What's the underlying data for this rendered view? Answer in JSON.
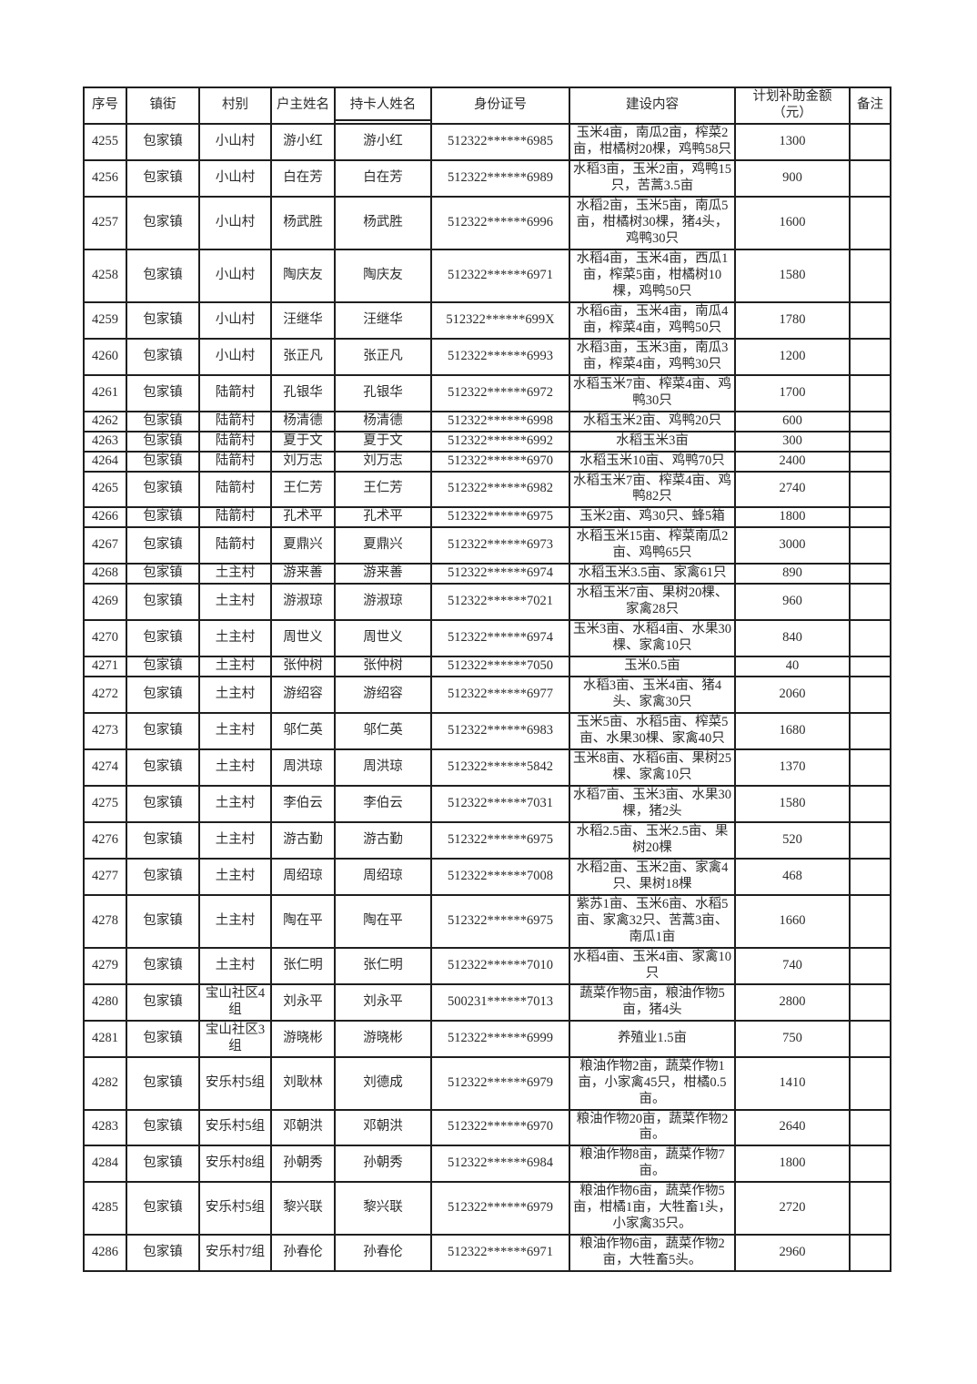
{
  "table": {
    "columns": [
      {
        "key": "seq",
        "label": "序号"
      },
      {
        "key": "town",
        "label": "镇街"
      },
      {
        "key": "village",
        "label": "村别"
      },
      {
        "key": "householder",
        "label": "户主姓名"
      },
      {
        "key": "cardholder",
        "label": "持卡人姓名"
      },
      {
        "key": "id",
        "label": "身份证号"
      },
      {
        "key": "content",
        "label": "建设内容"
      },
      {
        "key": "amount",
        "label": "计划补助金额\n（元）"
      },
      {
        "key": "remark",
        "label": "备注"
      }
    ],
    "rows": [
      [
        "4255",
        "包家镇",
        "小山村",
        "游小红",
        "游小红",
        "512322******6985",
        "玉米4亩，南瓜2亩，榨菜2亩，柑橘树20棵，鸡鸭58只",
        "1300",
        ""
      ],
      [
        "4256",
        "包家镇",
        "小山村",
        "白在芳",
        "白在芳",
        "512322******6989",
        "水稻3亩，玉米2亩，鸡鸭15只，苦蒿3.5亩",
        "900",
        ""
      ],
      [
        "4257",
        "包家镇",
        "小山村",
        "杨武胜",
        "杨武胜",
        "512322******6996",
        "水稻2亩，玉米5亩，南瓜5亩，柑橘树30棵，猪4头，鸡鸭30只",
        "1600",
        ""
      ],
      [
        "4258",
        "包家镇",
        "小山村",
        "陶庆友",
        "陶庆友",
        "512322******6971",
        "水稻4亩，玉米4亩，西瓜1亩，榨菜5亩，柑橘树10棵，鸡鸭50只",
        "1580",
        ""
      ],
      [
        "4259",
        "包家镇",
        "小山村",
        "汪继华",
        "汪继华",
        "512322******699X",
        "水稻6亩，玉米4亩，南瓜4亩，榨菜4亩，鸡鸭50只",
        "1780",
        ""
      ],
      [
        "4260",
        "包家镇",
        "小山村",
        "张正凡",
        "张正凡",
        "512322******6993",
        "水稻3亩，玉米3亩，南瓜3亩，榨菜4亩，鸡鸭30只",
        "1200",
        ""
      ],
      [
        "4261",
        "包家镇",
        "陆箭村",
        "孔银华",
        "孔银华",
        "512322******6972",
        "水稻玉米7亩、榨菜4亩、鸡鸭30只",
        "1700",
        ""
      ],
      [
        "4262",
        "包家镇",
        "陆箭村",
        "杨清德",
        "杨清德",
        "512322******6998",
        "水稻玉米2亩、鸡鸭20只",
        "600",
        ""
      ],
      [
        "4263",
        "包家镇",
        "陆箭村",
        "夏于文",
        "夏于文",
        "512322******6992",
        "水稻玉米3亩",
        "300",
        ""
      ],
      [
        "4264",
        "包家镇",
        "陆箭村",
        "刘万志",
        "刘万志",
        "512322******6970",
        "水稻玉米10亩、鸡鸭70只",
        "2400",
        ""
      ],
      [
        "4265",
        "包家镇",
        "陆箭村",
        "王仁芳",
        "王仁芳",
        "512322******6982",
        "水稻玉米7亩、榨菜4亩、鸡鸭82只",
        "2740",
        ""
      ],
      [
        "4266",
        "包家镇",
        "陆箭村",
        "孔术平",
        "孔术平",
        "512322******6975",
        "玉米2亩、鸡30只、蜂5箱",
        "1800",
        ""
      ],
      [
        "4267",
        "包家镇",
        "陆箭村",
        "夏鼎兴",
        "夏鼎兴",
        "512322******6973",
        "水稻玉米15亩、榨菜南瓜2亩、鸡鸭65只",
        "3000",
        ""
      ],
      [
        "4268",
        "包家镇",
        "土主村",
        "游来善",
        "游来善",
        "512322******6974",
        "水稻玉米3.5亩、家禽61只",
        "890",
        ""
      ],
      [
        "4269",
        "包家镇",
        "土主村",
        "游淑琼",
        "游淑琼",
        "512322******7021",
        "水稻玉米7亩、果树20棵、家禽28只",
        "960",
        ""
      ],
      [
        "4270",
        "包家镇",
        "土主村",
        "周世义",
        "周世义",
        "512322******6974",
        "玉米3亩、水稻4亩、水果30棵、家禽10只",
        "840",
        ""
      ],
      [
        "4271",
        "包家镇",
        "土主村",
        "张仲树",
        "张仲树",
        "512322******7050",
        "玉米0.5亩",
        "40",
        ""
      ],
      [
        "4272",
        "包家镇",
        "土主村",
        "游绍容",
        "游绍容",
        "512322******6977",
        "水稻3亩、玉米4亩、猪4头、家禽30只",
        "2060",
        ""
      ],
      [
        "4273",
        "包家镇",
        "土主村",
        "邬仁英",
        "邬仁英",
        "512322******6983",
        "玉米5亩、水稻5亩、榨菜5亩、水果30棵、家禽40只",
        "1680",
        ""
      ],
      [
        "4274",
        "包家镇",
        "土主村",
        "周洪琼",
        "周洪琼",
        "512322******5842",
        "玉米8亩、水稻6亩、果树25棵、家禽10只",
        "1370",
        ""
      ],
      [
        "4275",
        "包家镇",
        "土主村",
        "李伯云",
        "李伯云",
        "512322******7031",
        "水稻7亩、玉米3亩、水果30棵，猪2头",
        "1580",
        ""
      ],
      [
        "4276",
        "包家镇",
        "土主村",
        "游古勤",
        "游古勤",
        "512322******6975",
        "水稻2.5亩、玉米2.5亩、果树20棵",
        "520",
        ""
      ],
      [
        "4277",
        "包家镇",
        "土主村",
        "周绍琼",
        "周绍琼",
        "512322******7008",
        "水稻2亩、玉米2亩、家禽4只、果树18棵",
        "468",
        ""
      ],
      [
        "4278",
        "包家镇",
        "土主村",
        "陶在平",
        "陶在平",
        "512322******6975",
        "紫苏1亩、玉米6亩、水稻5亩、家禽32只、苦蒿3亩、南瓜1亩",
        "1660",
        ""
      ],
      [
        "4279",
        "包家镇",
        "土主村",
        "张仁明",
        "张仁明",
        "512322******7010",
        "水稻4亩、玉米4亩、家禽10只",
        "740",
        ""
      ],
      [
        "4280",
        "包家镇",
        "宝山社区4组",
        "刘永平",
        "刘永平",
        "500231******7013",
        "蔬菜作物5亩，粮油作物5亩，猪4头",
        "2800",
        ""
      ],
      [
        "4281",
        "包家镇",
        "宝山社区3组",
        "游晓彬",
        "游晓彬",
        "512322******6999",
        "养殖业1.5亩",
        "750",
        ""
      ],
      [
        "4282",
        "包家镇",
        "安乐村5组",
        "刘耿林",
        "刘德成",
        "512322******6979",
        "粮油作物2亩，蔬菜作物1亩，小家禽45只，柑橘0.5亩。",
        "1410",
        ""
      ],
      [
        "4283",
        "包家镇",
        "安乐村5组",
        "邓朝洪",
        "邓朝洪",
        "512322******6970",
        "粮油作物20亩，蔬菜作物2亩。",
        "2640",
        ""
      ],
      [
        "4284",
        "包家镇",
        "安乐村8组",
        "孙朝秀",
        "孙朝秀",
        "512322******6984",
        "粮油作物8亩，蔬菜作物7亩。",
        "1800",
        ""
      ],
      [
        "4285",
        "包家镇",
        "安乐村5组",
        "黎兴联",
        "黎兴联",
        "512322******6979",
        "粮油作物6亩，蔬菜作物5亩，柑橘1亩，大牲畜1头，小家禽35只。",
        "2720",
        ""
      ],
      [
        "4286",
        "包家镇",
        "安乐村7组",
        "孙春伦",
        "孙春伦",
        "512322******6971",
        "粮油作物6亩，蔬菜作物2亩，大牲畜5头。",
        "2960",
        ""
      ]
    ]
  }
}
